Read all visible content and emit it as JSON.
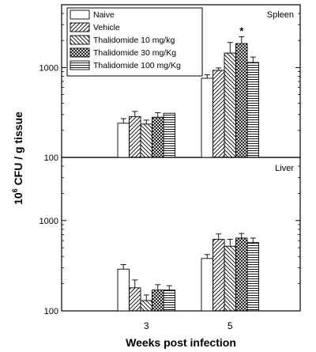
{
  "chart_data": {
    "type": "bar",
    "scale": "log",
    "ylabel_base": "10",
    "ylabel_exp": "6",
    "ylabel_rest": " CFU / g tissue",
    "xlabel": "Weeks post infection",
    "categories": [
      "3",
      "5"
    ],
    "legend": {
      "position": "top-left of upper panel",
      "entries": [
        {
          "label": "Naive",
          "pattern": "blank"
        },
        {
          "label": "Vehicle",
          "pattern": "diag-up"
        },
        {
          "label": "Thalidomide 10 mg/kg",
          "pattern": "diag-down"
        },
        {
          "label": "Thalidomide 30 mg/Kg",
          "pattern": "cross"
        },
        {
          "label": "Thalidomide 100 mg/Kg",
          "pattern": "horizontal"
        }
      ]
    },
    "panels": [
      {
        "name": "Spleen",
        "ylim": [
          100,
          5000
        ],
        "yticks": [
          {
            "value": 100,
            "label": "100"
          },
          {
            "value": 1000,
            "label": "1000"
          }
        ],
        "series": [
          {
            "values": [
              240,
              760
            ],
            "errors": [
              30,
              70
            ]
          },
          {
            "values": [
              285,
              930
            ],
            "errors": [
              40,
              60
            ]
          },
          {
            "values": [
              235,
              1450
            ],
            "errors": [
              25,
              450
            ]
          },
          {
            "values": [
              280,
              1850
            ],
            "errors": [
              35,
              350
            ]
          },
          {
            "values": [
              310,
              1140
            ],
            "errors": [
              0,
              170
            ]
          }
        ],
        "annotations": [
          {
            "text": "*",
            "category": "5",
            "series_index": 3
          }
        ]
      },
      {
        "name": "Liver",
        "ylim": [
          100,
          5000
        ],
        "yticks": [
          {
            "value": 100,
            "label": "100"
          },
          {
            "value": 1000,
            "label": "1000"
          }
        ],
        "series": [
          {
            "values": [
              290,
              380
            ],
            "errors": [
              35,
              40
            ]
          },
          {
            "values": [
              180,
              620
            ],
            "errors": [
              40,
              90
            ]
          },
          {
            "values": [
              130,
              520
            ],
            "errors": [
              20,
              100
            ]
          },
          {
            "values": [
              170,
              640
            ],
            "errors": [
              25,
              80
            ]
          },
          {
            "values": [
              170,
              570
            ],
            "errors": [
              20,
              70
            ]
          }
        ],
        "annotations": []
      }
    ]
  }
}
